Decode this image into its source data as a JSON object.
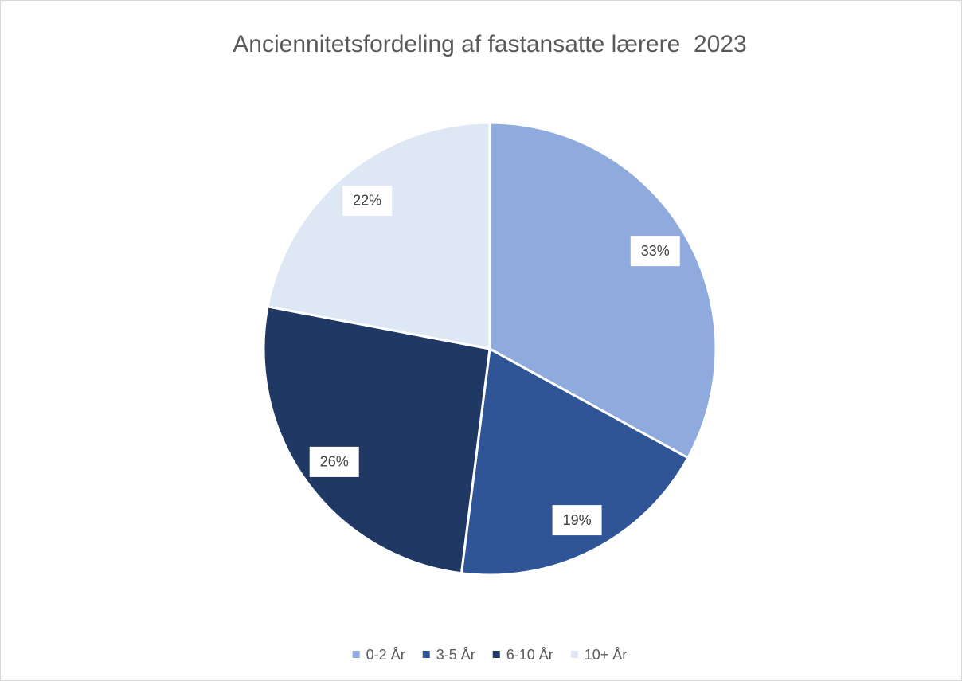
{
  "chart_data": {
    "type": "pie",
    "title": "Anciennitetsfordeling af fastansatte lærere  2023",
    "categories": [
      "0-2 År",
      "3-5 År",
      "6-10 År",
      "10+ År"
    ],
    "values": [
      33,
      19,
      26,
      22
    ],
    "value_labels": [
      "33%",
      "19%",
      "26%",
      "22%"
    ],
    "colors": [
      "#8faadc",
      "#2f5597",
      "#203864",
      "#dee8f5"
    ],
    "legend": "bottom"
  }
}
